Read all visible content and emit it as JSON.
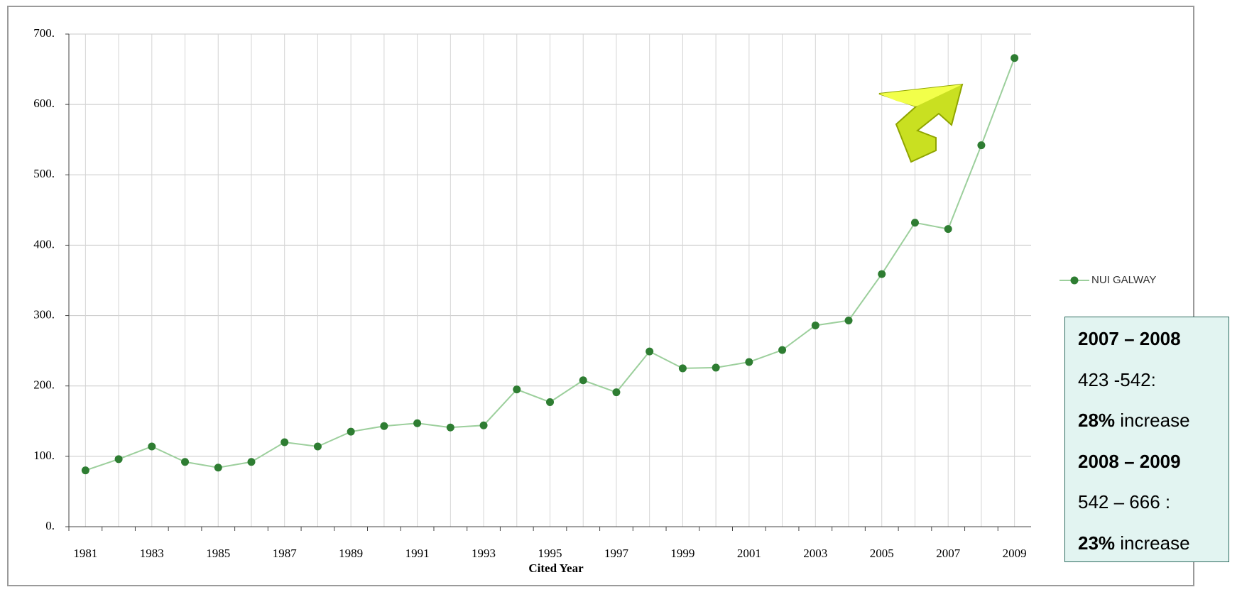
{
  "chart_data": {
    "type": "line",
    "x_label": "Cited Year",
    "categories": [
      "1981",
      null,
      "1983",
      null,
      "1985",
      null,
      "1987",
      null,
      "1989",
      null,
      "1991",
      null,
      "1993",
      null,
      "1995",
      null,
      "1997",
      null,
      "1999",
      null,
      "2001",
      null,
      "2003",
      null,
      "2005",
      null,
      "2007",
      null,
      "2009"
    ],
    "series": [
      {
        "name": "NUI GALWAY",
        "color": "#2e7d32",
        "line_color": "#9ccf9c",
        "values": [
          80,
          96,
          114,
          92,
          84,
          92,
          120,
          114,
          135,
          143,
          147,
          141,
          144,
          195,
          177,
          208,
          191,
          249,
          225,
          226,
          234,
          251,
          286,
          293,
          359,
          432,
          423,
          542,
          666
        ]
      }
    ],
    "ylim": [
      0,
      700
    ],
    "yticks": [
      {
        "value": 0,
        "label": "0."
      },
      {
        "value": 100,
        "label": "100."
      },
      {
        "value": 200,
        "label": "200."
      },
      {
        "value": 300,
        "label": "300."
      },
      {
        "value": 400,
        "label": "400."
      },
      {
        "value": 500,
        "label": "500."
      },
      {
        "value": 600,
        "label": "600."
      },
      {
        "value": 700,
        "label": "700."
      }
    ],
    "grid": true,
    "legend": "right",
    "annotation": [
      [
        {
          "text": "2007 – 2008",
          "bold": true
        }
      ],
      [
        {
          "text": "423 -542:",
          "bold": false
        }
      ],
      [
        {
          "text": "28%",
          "bold": true
        },
        {
          "text": " increase",
          "bold": false
        }
      ],
      [
        {
          "text": "2008 – 2009",
          "bold": true
        }
      ],
      [
        {
          "text": "542 – 666 :",
          "bold": false
        }
      ],
      [
        {
          "text": "23%",
          "bold": true
        },
        {
          "text": " increase",
          "bold": false
        }
      ]
    ]
  }
}
